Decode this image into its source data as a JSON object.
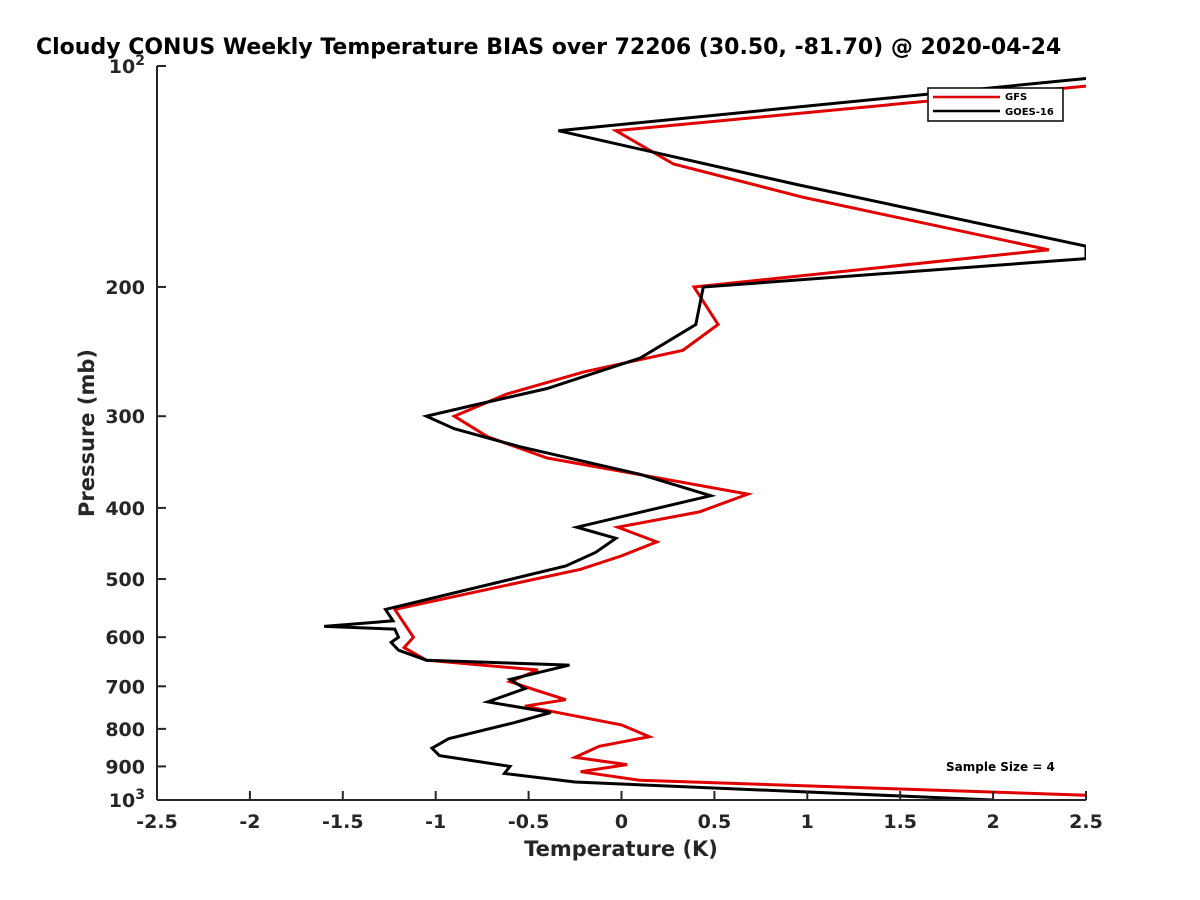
{
  "chart_data": {
    "type": "line",
    "title": "Cloudy CONUS Weekly Temperature BIAS over 72206 (30.50, -81.70) @ 2020-04-24",
    "xlabel": "Temperature (K)",
    "ylabel": "Pressure (mb)",
    "xlim": [
      -2.5,
      2.5
    ],
    "ylim": [
      100,
      1000
    ],
    "y_scale": "log",
    "y_direction": "reversed",
    "grid": false,
    "legend_position": "top-right",
    "x_ticks": [
      {
        "value": -2.5,
        "label": "-2.5"
      },
      {
        "value": -2,
        "label": "-2"
      },
      {
        "value": -1.5,
        "label": "-1.5"
      },
      {
        "value": -1,
        "label": "-1"
      },
      {
        "value": -0.5,
        "label": "-0.5"
      },
      {
        "value": 0,
        "label": "0"
      },
      {
        "value": 0.5,
        "label": "0.5"
      },
      {
        "value": 1,
        "label": "1"
      },
      {
        "value": 1.5,
        "label": "1.5"
      },
      {
        "value": 2,
        "label": "2"
      },
      {
        "value": 2.5,
        "label": "2.5"
      }
    ],
    "y_ticks": [
      {
        "value": 100,
        "base": "10",
        "exp": "2"
      },
      {
        "value": 200,
        "base": "200"
      },
      {
        "value": 300,
        "base": "300"
      },
      {
        "value": 400,
        "base": "400"
      },
      {
        "value": 500,
        "base": "500"
      },
      {
        "value": 600,
        "base": "600"
      },
      {
        "value": 700,
        "base": "700"
      },
      {
        "value": 800,
        "base": "800"
      },
      {
        "value": 900,
        "base": "900"
      },
      {
        "value": 1000,
        "base": "10",
        "exp": "3"
      }
    ],
    "series": [
      {
        "name": "GFS",
        "color": "#e00000",
        "points": [
          [
            2.5,
            106.5
          ],
          [
            -0.03,
            122.5
          ],
          [
            0.28,
            136
          ],
          [
            0.98,
            151
          ],
          [
            2.3,
            178
          ],
          [
            0.39,
            200
          ],
          [
            0.52,
            225
          ],
          [
            0.33,
            244
          ],
          [
            -0.2,
            261
          ],
          [
            -0.62,
            280
          ],
          [
            -0.9,
            300
          ],
          [
            -0.72,
            320
          ],
          [
            -0.4,
            342
          ],
          [
            0.22,
            365
          ],
          [
            0.68,
            383
          ],
          [
            0.42,
            405
          ],
          [
            -0.02,
            425
          ],
          [
            0.19,
            445
          ],
          [
            0.0,
            465
          ],
          [
            -0.22,
            485
          ],
          [
            -1.22,
            550
          ],
          [
            -1.12,
            600
          ],
          [
            -1.17,
            620
          ],
          [
            -1.05,
            645
          ],
          [
            -0.45,
            665
          ],
          [
            -0.6,
            690
          ],
          [
            -0.45,
            710
          ],
          [
            -0.3,
            730
          ],
          [
            -0.52,
            745
          ],
          [
            0.0,
            790
          ],
          [
            0.15,
            820
          ],
          [
            -0.12,
            845
          ],
          [
            -0.25,
            875
          ],
          [
            0.03,
            895
          ],
          [
            -0.22,
            915
          ],
          [
            0.1,
            940
          ],
          [
            2.5,
            985
          ]
        ]
      },
      {
        "name": "GOES-16",
        "color": "#000000",
        "points": [
          [
            2.5,
            104
          ],
          [
            -0.34,
            122.5
          ],
          [
            0.94,
            145
          ],
          [
            2.5,
            176
          ],
          [
            2.5,
            183
          ],
          [
            0.44,
            200
          ],
          [
            0.4,
            225
          ],
          [
            0.1,
            250
          ],
          [
            -0.4,
            275
          ],
          [
            -0.8,
            290
          ],
          [
            -1.05,
            300
          ],
          [
            -0.9,
            312
          ],
          [
            -0.55,
            330
          ],
          [
            0.1,
            360
          ],
          [
            0.48,
            385
          ],
          [
            0.2,
            400
          ],
          [
            -0.24,
            425
          ],
          [
            -0.03,
            440
          ],
          [
            -0.14,
            460
          ],
          [
            -0.3,
            480
          ],
          [
            -1.27,
            550
          ],
          [
            -1.23,
            570
          ],
          [
            -1.6,
            580
          ],
          [
            -1.22,
            585
          ],
          [
            -1.2,
            600
          ],
          [
            -1.24,
            610
          ],
          [
            -1.2,
            625
          ],
          [
            -1.05,
            645
          ],
          [
            -0.28,
            655
          ],
          [
            -0.6,
            685
          ],
          [
            -0.52,
            705
          ],
          [
            -0.72,
            735
          ],
          [
            -0.38,
            760
          ],
          [
            -0.58,
            785
          ],
          [
            -0.93,
            825
          ],
          [
            -1.02,
            850
          ],
          [
            -0.98,
            870
          ],
          [
            -0.6,
            900
          ],
          [
            -0.63,
            920
          ],
          [
            -0.25,
            945
          ],
          [
            2.0,
            1000
          ]
        ]
      }
    ],
    "annotations": [
      "Sample Size = 4"
    ]
  }
}
